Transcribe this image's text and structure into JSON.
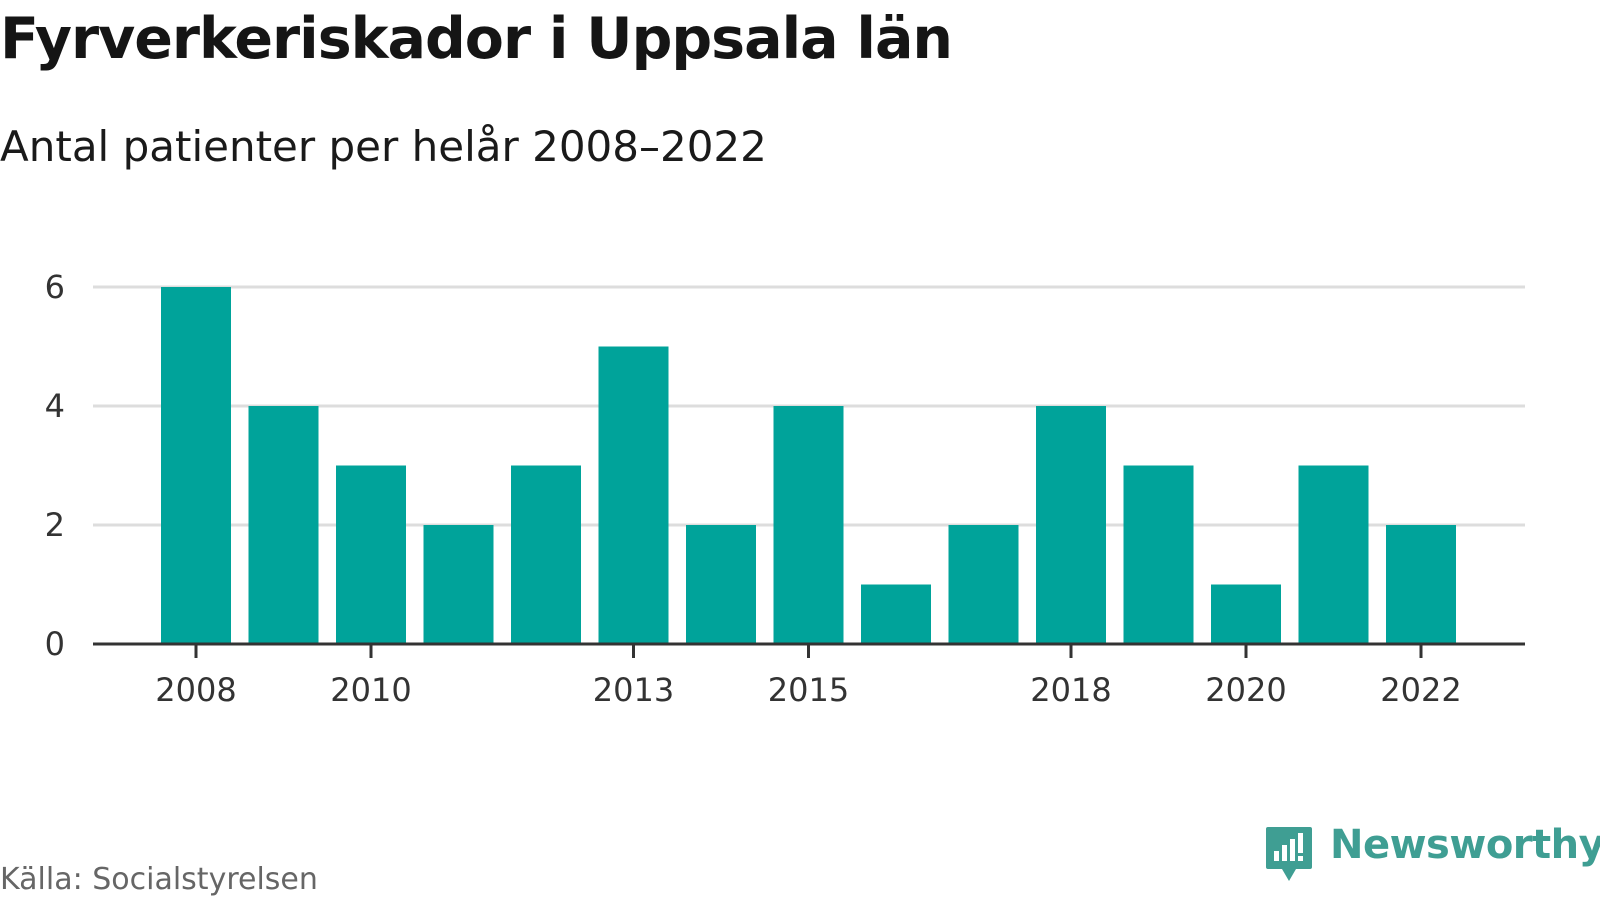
{
  "chart_data": {
    "type": "bar",
    "title": "Fyrverkeriskador i Uppsala län",
    "subtitle": "Antal patienter per helår 2008–2022",
    "categories": [
      "2008",
      "2009",
      "2010",
      "2011",
      "2012",
      "2013",
      "2014",
      "2015",
      "2016",
      "2017",
      "2018",
      "2019",
      "2020",
      "2021",
      "2022"
    ],
    "values": [
      6,
      4,
      3,
      2,
      3,
      5,
      2,
      4,
      1,
      2,
      4,
      3,
      1,
      3,
      2
    ],
    "x_tick_labels": [
      "2008",
      "2010",
      "2013",
      "2015",
      "2018",
      "2020",
      "2022"
    ],
    "y_ticks": [
      0,
      2,
      4,
      6
    ],
    "ylim": [
      0,
      6
    ],
    "xlabel": "",
    "ylabel": "",
    "grid": true,
    "bar_color": "#00a39a",
    "grid_color": "#dddddd",
    "axis_color": "#333333"
  },
  "source": "Källa: Socialstyrelsen",
  "brand": {
    "name": "Newsworthy",
    "icon": "newsworthy-logo-icon",
    "color": "#3f9e93"
  }
}
